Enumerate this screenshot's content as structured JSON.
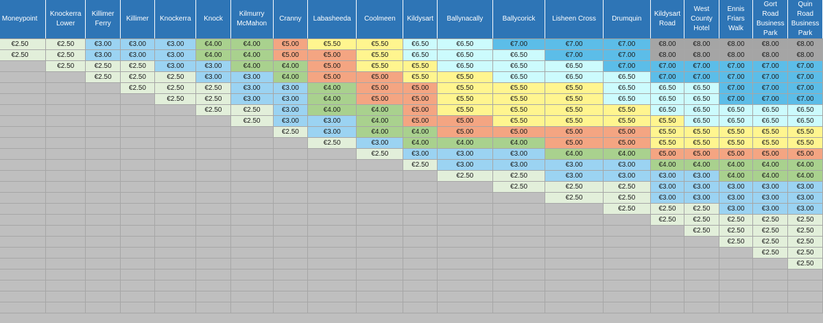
{
  "colors": {
    "header_bg": "#2e75b6",
    "empty_bg": "#bfbfbf",
    "fares": {
      "€2.50": "#e2efda",
      "€3.00": "#9bd3f2",
      "€4.00": "#a9d18e",
      "€5.00": "#f4a582",
      "€5.50": "#fff58f",
      "€6.50": "#ccfbfd",
      "€7.00": "#5cbde8",
      "€8.00": "#a5a5a5"
    }
  },
  "headers": [
    "Moneypoint",
    "Knockerra Lower",
    "Killimer Ferry",
    "Killimer",
    "Knockerra",
    "Knock",
    "Kilmurry McMahon",
    "Cranny",
    "Labasheeda",
    "Coolmeen",
    "Kildysart",
    "Ballynacally",
    "Ballycorick",
    "Lisheen Cross",
    "Drumquin",
    "Kildysart Road",
    "West County Hotel",
    "Ennis Friars Walk",
    "Gort Road Business Park",
    "Quin Road Business Park"
  ],
  "rows": [
    [
      "€2.50",
      "€2.50",
      "€3.00",
      "€3.00",
      "€3.00",
      "€4.00",
      "€4.00",
      "€5.00",
      "€5.50",
      "€5.50",
      "€6.50",
      "€6.50",
      "€7.00",
      "€7.00",
      "€7.00",
      "€8.00",
      "€8.00",
      "€8.00",
      "€8.00",
      "€8.00"
    ],
    [
      "€2.50",
      "€2.50",
      "€3.00",
      "€3.00",
      "€3.00",
      "€4.00",
      "€4.00",
      "€5.00",
      "€5.00",
      "€5.50",
      "€6.50",
      "€6.50",
      "€6.50",
      "€7.00",
      "€7.00",
      "€8.00",
      "€8.00",
      "€8.00",
      "€8.00",
      "€8.00"
    ],
    [
      "",
      "€2.50",
      "€2.50",
      "€2.50",
      "€3.00",
      "€3.00",
      "€4.00",
      "€4.00",
      "€5.00",
      "€5.50",
      "€5.50",
      "€6.50",
      "€6.50",
      "€6.50",
      "€7.00",
      "€7.00",
      "€7.00",
      "€7.00",
      "€7.00",
      "€7.00"
    ],
    [
      "",
      "",
      "€2.50",
      "€2.50",
      "€2.50",
      "€3.00",
      "€3.00",
      "€4.00",
      "€5.00",
      "€5.00",
      "€5.50",
      "€5.50",
      "€6.50",
      "€6.50",
      "€6.50",
      "€7.00",
      "€7.00",
      "€7.00",
      "€7.00",
      "€7.00"
    ],
    [
      "",
      "",
      "",
      "€2.50",
      "€2.50",
      "€2.50",
      "€3.00",
      "€3.00",
      "€4.00",
      "€5.00",
      "€5.00",
      "€5.50",
      "€5.50",
      "€5.50",
      "€6.50",
      "€6.50",
      "€6.50",
      "€7.00",
      "€7.00",
      "€7.00"
    ],
    [
      "",
      "",
      "",
      "",
      "€2.50",
      "€2.50",
      "€3.00",
      "€3.00",
      "€4.00",
      "€5.00",
      "€5.00",
      "€5.50",
      "€5.50",
      "€5.50",
      "€6.50",
      "€6.50",
      "€6.50",
      "€7.00",
      "€7.00",
      "€7.00"
    ],
    [
      "",
      "",
      "",
      "",
      "",
      "€2.50",
      "€2.50",
      "€3.00",
      "€4.00",
      "€4.00",
      "€5.00",
      "€5.50",
      "€5.50",
      "€5.50",
      "€5.50",
      "€6.50",
      "€6.50",
      "€6.50",
      "€6.50",
      "€6.50"
    ],
    [
      "",
      "",
      "",
      "",
      "",
      "",
      "€2.50",
      "€3.00",
      "€3.00",
      "€4.00",
      "€5.00",
      "€5.00",
      "€5.50",
      "€5.50",
      "€5.50",
      "€5.50",
      "€6.50",
      "€6.50",
      "€6.50",
      "€6.50"
    ],
    [
      "",
      "",
      "",
      "",
      "",
      "",
      "",
      "€2.50",
      "€3.00",
      "€4.00",
      "€4.00",
      "€5.00",
      "€5.00",
      "€5.00",
      "€5.00",
      "€5.50",
      "€5.50",
      "€5.50",
      "€5.50",
      "€5.50"
    ],
    [
      "",
      "",
      "",
      "",
      "",
      "",
      "",
      "",
      "€2.50",
      "€3.00",
      "€4.00",
      "€4.00",
      "€4.00",
      "€5.00",
      "€5.00",
      "€5.50",
      "€5.50",
      "€5.50",
      "€5.50",
      "€5.50"
    ],
    [
      "",
      "",
      "",
      "",
      "",
      "",
      "",
      "",
      "",
      "€2.50",
      "€3.00",
      "€3.00",
      "€3.00",
      "€4.00",
      "€4.00",
      "€5.00",
      "€5.00",
      "€5.00",
      "€5.00",
      "€5.00"
    ],
    [
      "",
      "",
      "",
      "",
      "",
      "",
      "",
      "",
      "",
      "",
      "€2.50",
      "€3.00",
      "€3.00",
      "€3.00",
      "€3.00",
      "€4.00",
      "€4.00",
      "€4.00",
      "€4.00",
      "€4.00"
    ],
    [
      "",
      "",
      "",
      "",
      "",
      "",
      "",
      "",
      "",
      "",
      "",
      "€2.50",
      "€2.50",
      "€3.00",
      "€3.00",
      "€3.00",
      "€3.00",
      "€4.00",
      "€4.00",
      "€4.00"
    ],
    [
      "",
      "",
      "",
      "",
      "",
      "",
      "",
      "",
      "",
      "",
      "",
      "",
      "€2.50",
      "€2.50",
      "€2.50",
      "€3.00",
      "€3.00",
      "€3.00",
      "€3.00",
      "€3.00"
    ],
    [
      "",
      "",
      "",
      "",
      "",
      "",
      "",
      "",
      "",
      "",
      "",
      "",
      "",
      "€2.50",
      "€2.50",
      "€3.00",
      "€3.00",
      "€3.00",
      "€3.00",
      "€3.00"
    ],
    [
      "",
      "",
      "",
      "",
      "",
      "",
      "",
      "",
      "",
      "",
      "",
      "",
      "",
      "",
      "€2.50",
      "€2.50",
      "€2.50",
      "€3.00",
      "€3.00",
      "€3.00"
    ],
    [
      "",
      "",
      "",
      "",
      "",
      "",
      "",
      "",
      "",
      "",
      "",
      "",
      "",
      "",
      "",
      "€2.50",
      "€2.50",
      "€2.50",
      "€2.50",
      "€2.50"
    ],
    [
      "",
      "",
      "",
      "",
      "",
      "",
      "",
      "",
      "",
      "",
      "",
      "",
      "",
      "",
      "",
      "",
      "€2.50",
      "€2.50",
      "€2.50",
      "€2.50"
    ],
    [
      "",
      "",
      "",
      "",
      "",
      "",
      "",
      "",
      "",
      "",
      "",
      "",
      "",
      "",
      "",
      "",
      "",
      "€2.50",
      "€2.50",
      "€2.50"
    ],
    [
      "",
      "",
      "",
      "",
      "",
      "",
      "",
      "",
      "",
      "",
      "",
      "",
      "",
      "",
      "",
      "",
      "",
      "",
      "€2.50",
      "€2.50"
    ],
    [
      "",
      "",
      "",
      "",
      "",
      "",
      "",
      "",
      "",
      "",
      "",
      "",
      "",
      "",
      "",
      "",
      "",
      "",
      "",
      "€2.50"
    ],
    [
      "",
      "",
      "",
      "",
      "",
      "",
      "",
      "",
      "",
      "",
      "",
      "",
      "",
      "",
      "",
      "",
      "",
      "",
      "",
      ""
    ],
    [
      "",
      "",
      "",
      "",
      "",
      "",
      "",
      "",
      "",
      "",
      "",
      "",
      "",
      "",
      "",
      "",
      "",
      "",
      "",
      ""
    ],
    [
      "",
      "",
      "",
      "",
      "",
      "",
      "",
      "",
      "",
      "",
      "",
      "",
      "",
      "",
      "",
      "",
      "",
      "",
      "",
      ""
    ],
    [
      "",
      "",
      "",
      "",
      "",
      "",
      "",
      "",
      "",
      "",
      "",
      "",
      "",
      "",
      "",
      "",
      "",
      "",
      "",
      ""
    ]
  ]
}
